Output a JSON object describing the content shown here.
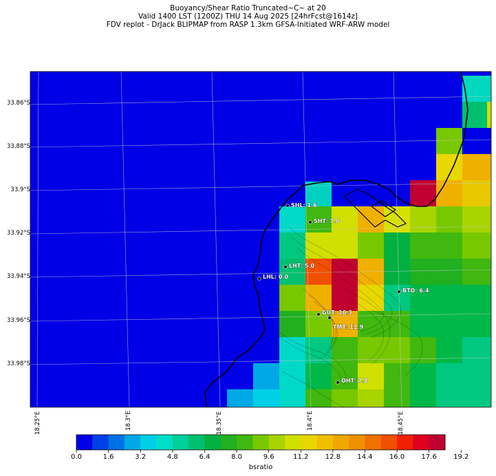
{
  "title": {
    "line1": "Buoyancy/Shear Ratio Truncated~C~    at 20",
    "line2": "Valid 1400 LST (1200Z) THU 14 Aug 2025 [24hrFcst@1614z]",
    "line3": "FDV replot - DrJack BLIPMAP from RASP 1.3km GFSA-Initiated WRF-ARW model"
  },
  "map": {
    "lat_labels": [
      "33.86°S",
      "33.88°S",
      "33.9°S",
      "33.92°S",
      "33.94°S",
      "33.96°S",
      "33.98°S"
    ],
    "lon_labels": [
      "18.25°E",
      "18.3°E",
      "18.35°E",
      "18.4°E",
      "18.45°E"
    ],
    "background_color": "#0000e6",
    "stations": [
      {
        "code": "SHL",
        "value": "1.6",
        "label": "SHL: 1.6"
      },
      {
        "code": "SHT",
        "value": "7.0",
        "label": "SHT: 7.0"
      },
      {
        "code": "LHT",
        "value": "5.0",
        "label": "LHT: 5.0"
      },
      {
        "code": "LHL",
        "value": "0.0",
        "label": "LHL: 0.0"
      },
      {
        "code": "BTO",
        "value": "6.4",
        "label": "BTO: 6.4"
      },
      {
        "code": "GUT",
        "value": "10.3",
        "label": "GUT: 10.3"
      },
      {
        "code": "TMT",
        "value": "11.9",
        "label": "TMT: 11.9"
      },
      {
        "code": "OHT",
        "value": "7.8",
        "label": "OHT: 7.8"
      }
    ]
  },
  "colorbar": {
    "label": "bsratio",
    "tick_labels": [
      "0.0",
      "1.6",
      "3.2",
      "4.8",
      "6.4",
      "8.0",
      "9.6",
      "11.2",
      "12.8",
      "14.4",
      "16.0",
      "17.6",
      "19.2"
    ],
    "colors": [
      "#0000e6",
      "#0040e6",
      "#0070e6",
      "#00a8e6",
      "#00d0e6",
      "#00e0c8",
      "#00d09a",
      "#00c070",
      "#00b040",
      "#20b020",
      "#40b810",
      "#78c800",
      "#a8d400",
      "#d0e000",
      "#e8d800",
      "#f0c000",
      "#f0a800",
      "#f09000",
      "#f07000",
      "#f05000",
      "#f02000",
      "#e00020",
      "#c00030"
    ]
  }
}
